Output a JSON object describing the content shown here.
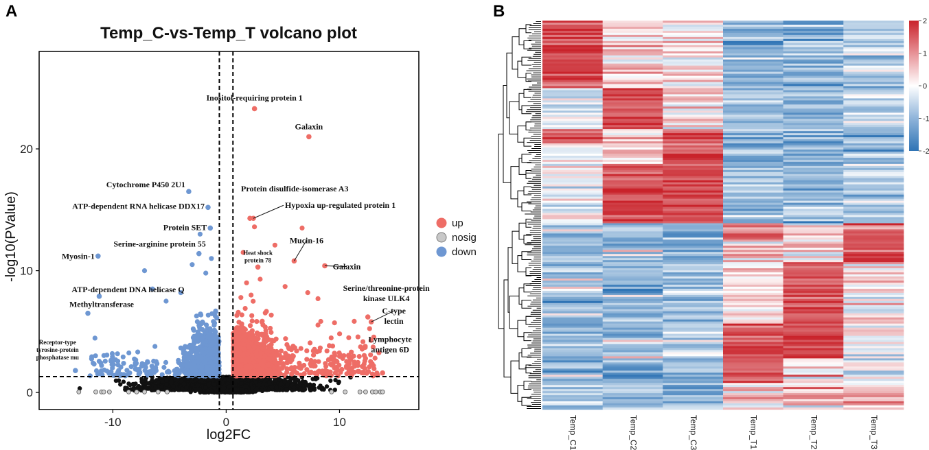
{
  "panels": {
    "a": "A",
    "b": "B"
  },
  "chart_data": [
    {
      "type": "scatter",
      "title": "Temp_C-vs-Temp_T volcano plot",
      "xlabel": "log2FC",
      "ylabel": "-log10(PValue)",
      "xlim": [
        -16.5,
        17
      ],
      "ylim": [
        -1.4,
        28
      ],
      "xticks": [
        -10,
        0,
        10
      ],
      "yticks": [
        0,
        10,
        20
      ],
      "thresholds": {
        "log2fc": [
          -0.6,
          0.6
        ],
        "neg_log10_p": 1.3
      },
      "legend": {
        "position": "right",
        "items": [
          {
            "label": "up",
            "color": "#EE6D66"
          },
          {
            "label": "nosig",
            "color": "#BFBFBF"
          },
          {
            "label": "down",
            "color": "#6E97D2"
          }
        ]
      },
      "annotations": [
        {
          "label": "Inositol-requiring protein 1",
          "x": 2.5,
          "y": 23.3,
          "group": "up"
        },
        {
          "label": "Galaxin",
          "x": 7.3,
          "y": 21.0,
          "group": "up"
        },
        {
          "label": "Protein disulfide-isomerase A3",
          "x": 2.1,
          "y": 14.3,
          "group": "up"
        },
        {
          "label": "Hypoxia up-regulated protein 1",
          "x": 2.4,
          "y": 14.3,
          "group": "up"
        },
        {
          "label": "Heat shock protein 78",
          "x": 2.8,
          "y": 10.3,
          "group": "up"
        },
        {
          "label": "Mucin-16",
          "x": 6.0,
          "y": 10.8,
          "group": "up"
        },
        {
          "label": "Galaxin",
          "x": 8.7,
          "y": 10.4,
          "group": "up"
        },
        {
          "label": "Serine/threonine-protein kinase ULK4",
          "x": 12.5,
          "y": 6.2,
          "group": "up"
        },
        {
          "label": "C-type lectin",
          "x": 12.8,
          "y": 5.8,
          "group": "up"
        },
        {
          "label": "Lymphocyte antigen 6D",
          "x": 13.8,
          "y": 1.6,
          "group": "up"
        },
        {
          "label": "Cytochrome P450 2U1",
          "x": -3.3,
          "y": 16.5,
          "group": "down"
        },
        {
          "label": "ATP-dependent RNA helicase DDX17",
          "x": -1.6,
          "y": 15.2,
          "group": "down"
        },
        {
          "label": "Protein SET",
          "x": -1.4,
          "y": 13.5,
          "group": "down"
        },
        {
          "label": "Serine-arginine protein 55",
          "x": -2.4,
          "y": 11.4,
          "group": "down"
        },
        {
          "label": "Myosin-1",
          "x": -11.3,
          "y": 11.2,
          "group": "down"
        },
        {
          "label": "ATP-dependent DNA helicase Q",
          "x": -11.2,
          "y": 7.9,
          "group": "down"
        },
        {
          "label": "Methyltransferase",
          "x": -12.2,
          "y": 6.5,
          "group": "down"
        },
        {
          "label": "Receptor-type tyrosine-protein phosphatase mu",
          "x": -13.3,
          "y": 1.8,
          "group": "down"
        }
      ]
    },
    {
      "type": "heatmap",
      "columns": [
        "Temp_C1",
        "Temp_C2",
        "Temp_C3",
        "Temp_T1",
        "Temp_T2",
        "Temp_T3"
      ],
      "row_dendrogram": true,
      "colorbar": {
        "min": -2,
        "max": 2,
        "ticks": [
          2,
          1,
          0,
          -1,
          -2
        ],
        "low": "#2F74B5",
        "mid": "#FFFFFF",
        "high": "#C9232B"
      },
      "blocks": [
        {
          "rows": "top cluster 1",
          "high_in": "Temp_C1"
        },
        {
          "rows": "top cluster 2",
          "high_in": "Temp_C2"
        },
        {
          "rows": "top cluster 3",
          "high_in": "Temp_C3"
        },
        {
          "rows": "bottom cluster 1",
          "high_in": "Temp_T3"
        },
        {
          "rows": "bottom cluster 2",
          "high_in": "Temp_T2"
        },
        {
          "rows": "bottom cluster 3",
          "high_in": "Temp_T1"
        }
      ]
    }
  ]
}
